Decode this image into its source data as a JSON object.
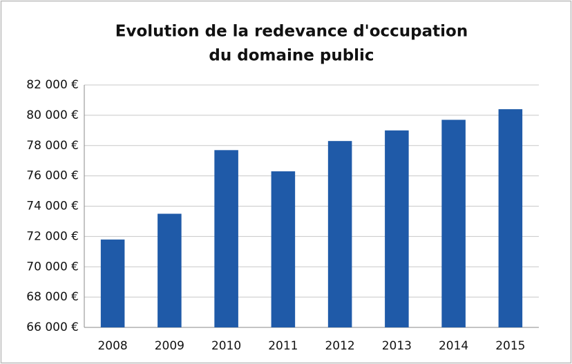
{
  "chart_data": {
    "type": "bar",
    "title": [
      "Evolution de la redevance d'occupation",
      "du domaine public"
    ],
    "categories": [
      "2008",
      "2009",
      "2010",
      "2011",
      "2012",
      "2013",
      "2014",
      "2015"
    ],
    "values": [
      71800,
      73500,
      77700,
      76300,
      78300,
      79000,
      79700,
      80400
    ],
    "color": "#1f5aa8",
    "ylim": [
      66000,
      82000
    ],
    "yticks": [
      {
        "value": 66000,
        "label": "66 000 €"
      },
      {
        "value": 68000,
        "label": "68 000 €"
      },
      {
        "value": 70000,
        "label": "70 000 €"
      },
      {
        "value": 72000,
        "label": "72 000 €"
      },
      {
        "value": 74000,
        "label": "74 000 €"
      },
      {
        "value": 76000,
        "label": "76 000 €"
      },
      {
        "value": 78000,
        "label": "78 000 €"
      },
      {
        "value": 80000,
        "label": "80 000 €"
      },
      {
        "value": 82000,
        "label": "82 000 €"
      }
    ],
    "grid": true
  }
}
